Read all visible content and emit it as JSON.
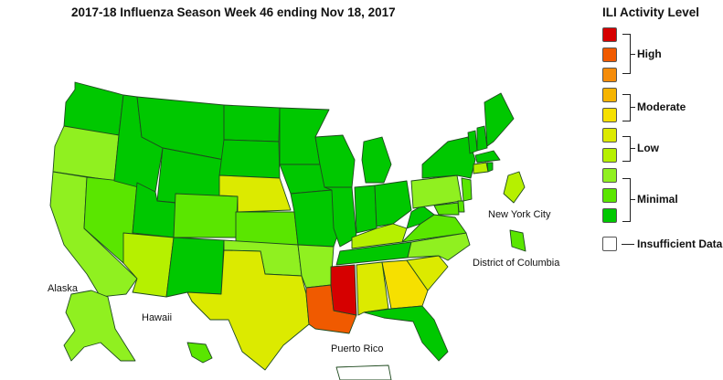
{
  "title": "2017-18 Influenza Season Week 46 ending Nov 18, 2017",
  "legend": {
    "title": "ILI Activity Level",
    "levels": [
      {
        "level": 10,
        "color": "#d60000"
      },
      {
        "level": 9,
        "color": "#f05a00"
      },
      {
        "level": 8,
        "color": "#f58c0a"
      },
      {
        "level": 7,
        "color": "#f6b400"
      },
      {
        "level": 6,
        "color": "#f6e000"
      },
      {
        "level": 5,
        "color": "#dcea00"
      },
      {
        "level": 4,
        "color": "#b6f000"
      },
      {
        "level": 3,
        "color": "#90f020"
      },
      {
        "level": 2,
        "color": "#5ae600"
      },
      {
        "level": 1,
        "color": "#00c800"
      },
      {
        "level": 0,
        "color": "#ffffff"
      }
    ],
    "groups": {
      "high": "High",
      "moderate": "Moderate",
      "low": "Low",
      "minimal": "Minimal",
      "insufficient": "Insufficient Data"
    }
  },
  "labels": {
    "alaska": "Alaska",
    "hawaii": "Hawaii",
    "puerto_rico": "Puerto Rico",
    "new_york_city": "New York City",
    "district_of_columbia": "District of Columbia"
  },
  "state_levels": {
    "WA": 1,
    "OR": 3,
    "CA": 3,
    "NV": 2,
    "ID": 1,
    "MT": 1,
    "WY": 1,
    "UT": 1,
    "AZ": 4,
    "CO": 2,
    "NM": 1,
    "ND": 1,
    "SD": 1,
    "NE": 5,
    "KS": 2,
    "OK": 3,
    "TX": 5,
    "MN": 1,
    "IA": 1,
    "MO": 1,
    "AR": 3,
    "LA": 9,
    "WI": 1,
    "IL": 1,
    "MI": 1,
    "IN": 1,
    "OH": 1,
    "KY": 4,
    "TN": 1,
    "MS": 10,
    "AL": 5,
    "GA": 6,
    "FL": 1,
    "SC": 5,
    "NC": 3,
    "VA": 2,
    "WV": 1,
    "PA": 3,
    "NY": 1,
    "VT": 1,
    "NH": 1,
    "ME": 1,
    "MA": 1,
    "CT": 4,
    "RI": 1,
    "NJ": 2,
    "DE": 2,
    "MD": 2,
    "AK": 3,
    "HI": 2,
    "PR": 0,
    "NYC": 4,
    "DC": 2
  }
}
